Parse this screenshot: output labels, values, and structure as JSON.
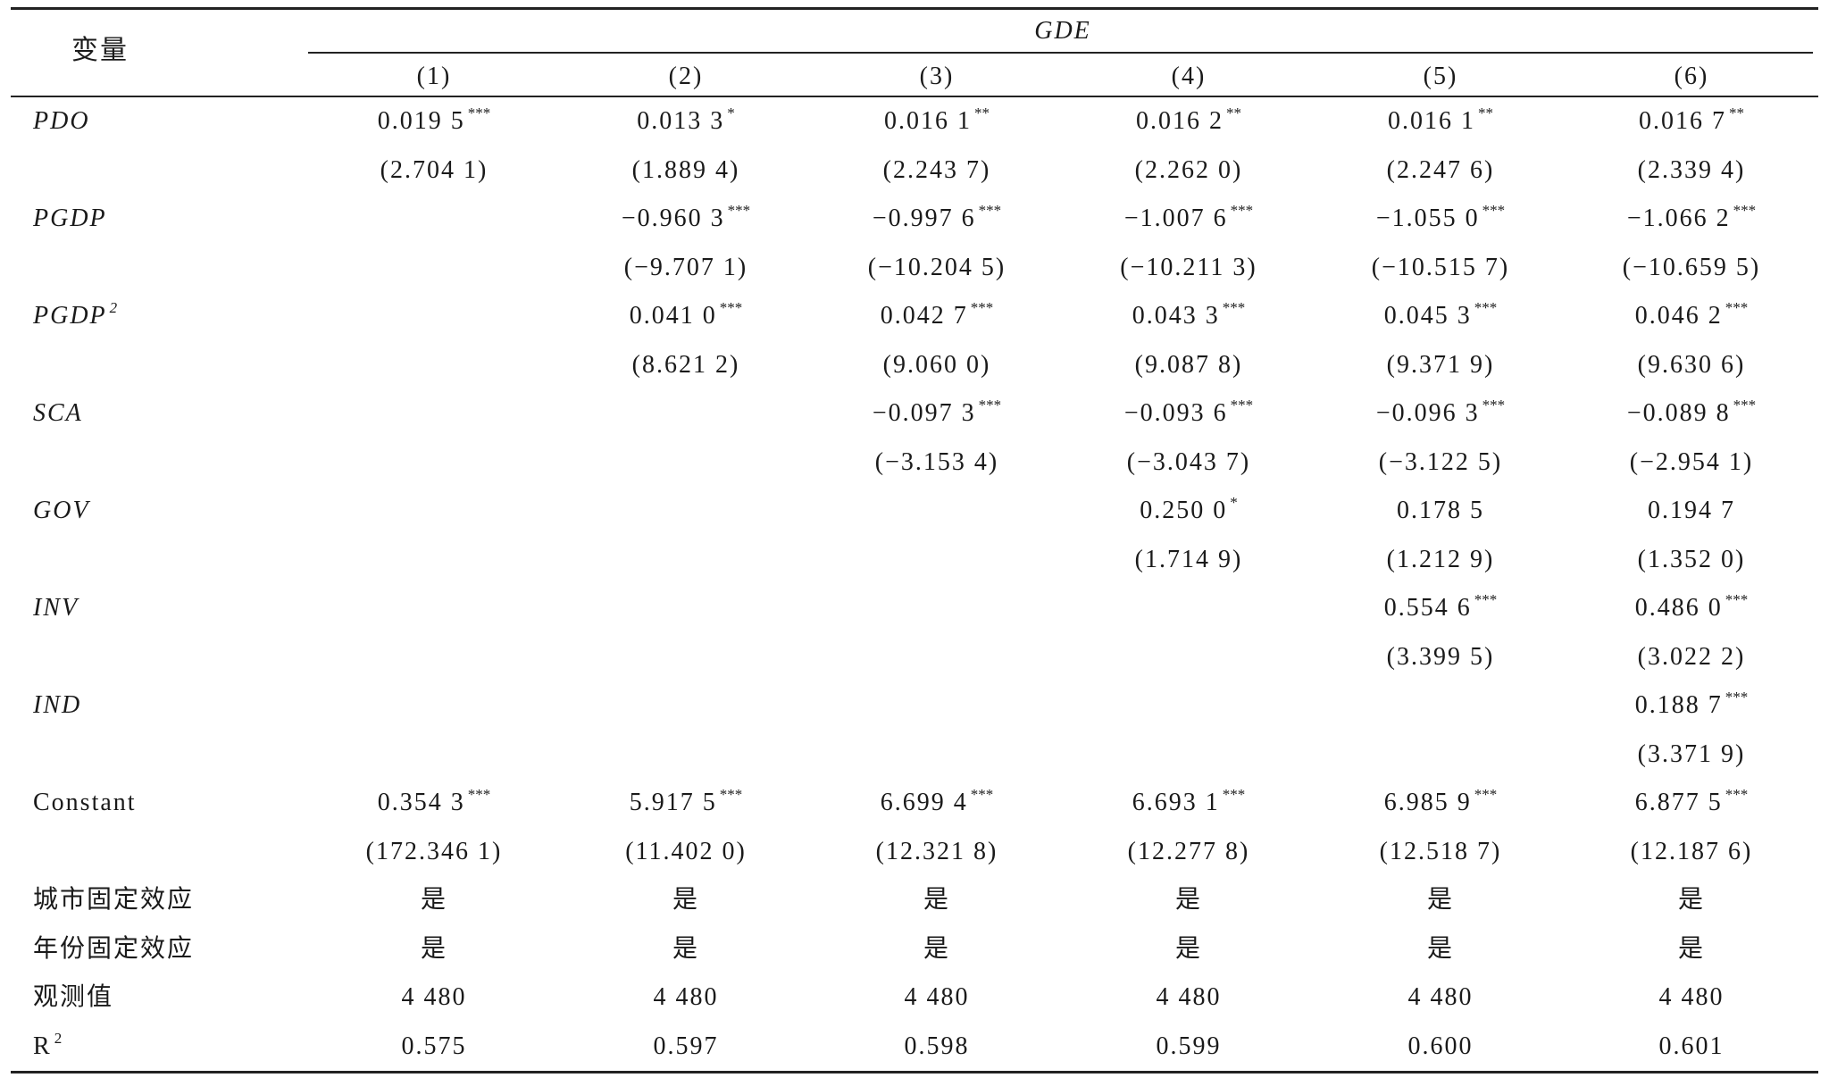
{
  "header": {
    "variable": "变量",
    "dependent": "GDE",
    "columns": [
      "(1)",
      "(2)",
      "(3)",
      "(4)",
      "(5)",
      "(6)"
    ]
  },
  "rows": [
    {
      "label": "PDO",
      "italic": true,
      "coef": [
        {
          "v": "0.019 5",
          "s": "***"
        },
        {
          "v": "0.013 3",
          "s": "*"
        },
        {
          "v": "0.016 1",
          "s": "**"
        },
        {
          "v": "0.016 2",
          "s": "**"
        },
        {
          "v": "0.016 1",
          "s": "**"
        },
        {
          "v": "0.016 7",
          "s": "**"
        }
      ],
      "t": [
        "(2.704 1)",
        "(1.889 4)",
        "(2.243 7)",
        "(2.262 0)",
        "(2.247 6)",
        "(2.339 4)"
      ]
    },
    {
      "label": "PGDP",
      "italic": true,
      "coef": [
        null,
        {
          "v": "−0.960 3",
          "s": "***"
        },
        {
          "v": "−0.997 6",
          "s": "***"
        },
        {
          "v": "−1.007 6",
          "s": "***"
        },
        {
          "v": "−1.055 0",
          "s": "***"
        },
        {
          "v": "−1.066 2",
          "s": "***"
        }
      ],
      "t": [
        null,
        "(−9.707 1)",
        "(−10.204 5)",
        "(−10.211 3)",
        "(−10.515 7)",
        "(−10.659 5)"
      ]
    },
    {
      "label": "PGDP",
      "sup": "2",
      "italic": true,
      "coef": [
        null,
        {
          "v": "0.041 0",
          "s": "***"
        },
        {
          "v": "0.042 7",
          "s": "***"
        },
        {
          "v": "0.043 3",
          "s": "***"
        },
        {
          "v": "0.045 3",
          "s": "***"
        },
        {
          "v": "0.046 2",
          "s": "***"
        }
      ],
      "t": [
        null,
        "(8.621 2)",
        "(9.060 0)",
        "(9.087 8)",
        "(9.371 9)",
        "(9.630 6)"
      ]
    },
    {
      "label": "SCA",
      "italic": true,
      "coef": [
        null,
        null,
        {
          "v": "−0.097 3",
          "s": "***"
        },
        {
          "v": "−0.093 6",
          "s": "***"
        },
        {
          "v": "−0.096 3",
          "s": "***"
        },
        {
          "v": "−0.089 8",
          "s": "***"
        }
      ],
      "t": [
        null,
        null,
        "(−3.153 4)",
        "(−3.043 7)",
        "(−3.122 5)",
        "(−2.954 1)"
      ]
    },
    {
      "label": "GOV",
      "italic": true,
      "coef": [
        null,
        null,
        null,
        {
          "v": "0.250 0",
          "s": "*"
        },
        {
          "v": "0.178 5",
          "s": ""
        },
        {
          "v": "0.194 7",
          "s": ""
        }
      ],
      "t": [
        null,
        null,
        null,
        "(1.714 9)",
        "(1.212 9)",
        "(1.352 0)"
      ]
    },
    {
      "label": "INV",
      "italic": true,
      "coef": [
        null,
        null,
        null,
        null,
        {
          "v": "0.554 6",
          "s": "***"
        },
        {
          "v": "0.486 0",
          "s": "***"
        }
      ],
      "t": [
        null,
        null,
        null,
        null,
        "(3.399 5)",
        "(3.022 2)"
      ]
    },
    {
      "label": "IND",
      "italic": true,
      "coef": [
        null,
        null,
        null,
        null,
        null,
        {
          "v": "0.188 7",
          "s": "***"
        }
      ],
      "t": [
        null,
        null,
        null,
        null,
        null,
        "(3.371 9)"
      ]
    },
    {
      "label": "Constant",
      "italic": false,
      "coef": [
        {
          "v": "0.354 3",
          "s": "***"
        },
        {
          "v": "5.917 5",
          "s": "***"
        },
        {
          "v": "6.699 4",
          "s": "***"
        },
        {
          "v": "6.693 1",
          "s": "***"
        },
        {
          "v": "6.985 9",
          "s": "***"
        },
        {
          "v": "6.877 5",
          "s": "***"
        }
      ],
      "t": [
        "(172.346 1)",
        "(11.402 0)",
        "(12.321 8)",
        "(12.277 8)",
        "(12.518 7)",
        "(12.187 6)"
      ]
    }
  ],
  "footer_rows": [
    {
      "label": "城市固定效应",
      "values": [
        "是",
        "是",
        "是",
        "是",
        "是",
        "是"
      ]
    },
    {
      "label": "年份固定效应",
      "values": [
        "是",
        "是",
        "是",
        "是",
        "是",
        "是"
      ]
    },
    {
      "label": "观测值",
      "values": [
        "4 480",
        "4 480",
        "4 480",
        "4 480",
        "4 480",
        "4 480"
      ]
    },
    {
      "label": "R",
      "sup": "2",
      "values": [
        "0.575",
        "0.597",
        "0.598",
        "0.599",
        "0.600",
        "0.601"
      ]
    }
  ]
}
